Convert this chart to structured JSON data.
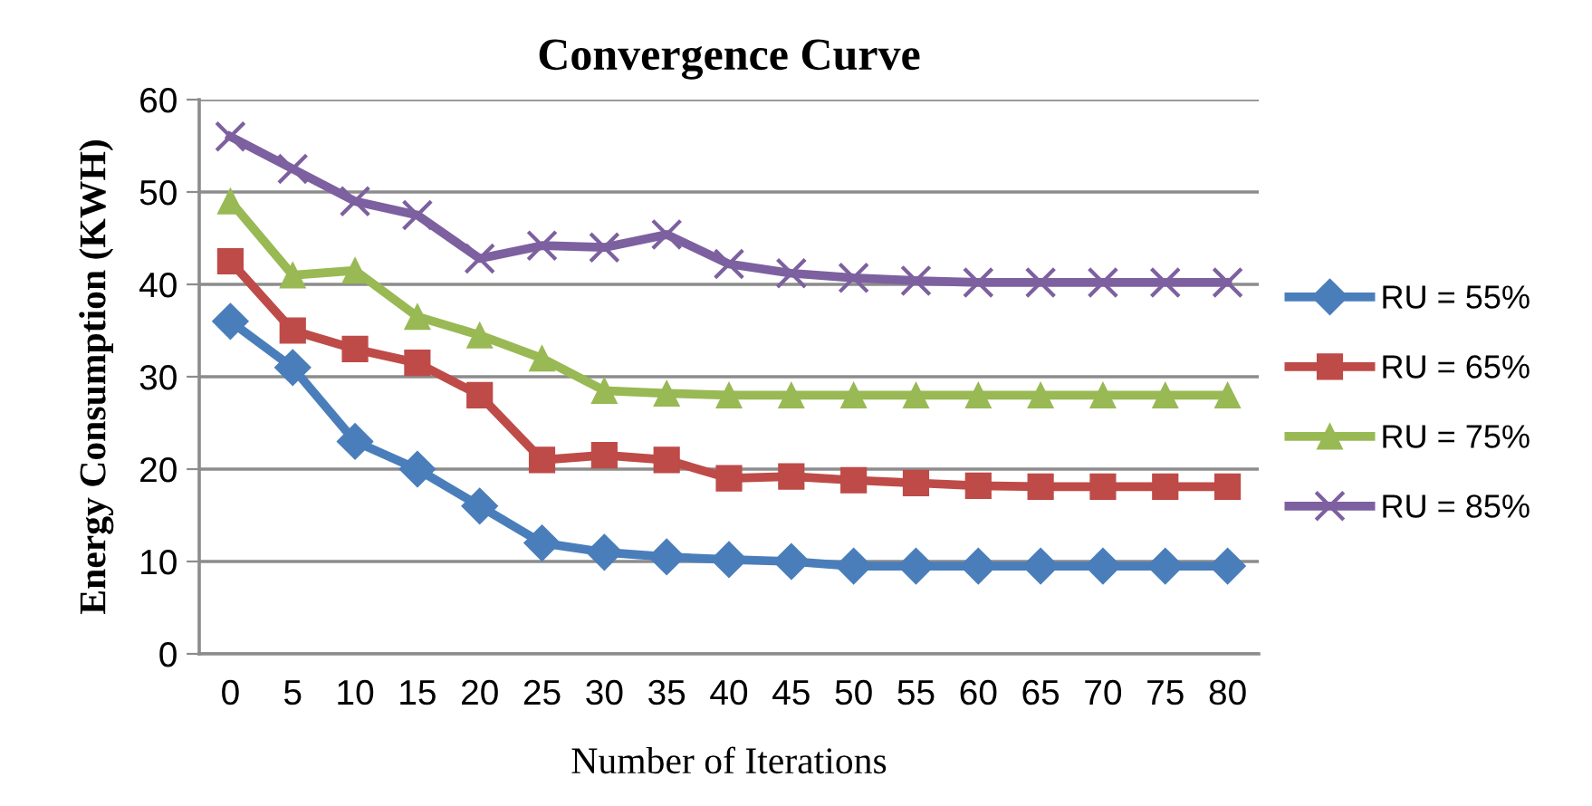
{
  "chart_data": {
    "type": "line",
    "title": "Convergence Curve",
    "xlabel": "Number of Iterations",
    "ylabel": "Energy Consumption (KWH)",
    "categories": [
      "0",
      "5",
      "10",
      "15",
      "20",
      "25",
      "30",
      "35",
      "40",
      "45",
      "50",
      "55",
      "60",
      "65",
      "70",
      "75",
      "80"
    ],
    "series": [
      {
        "name": "RU = 55%",
        "color": "#4a7ebb",
        "marker": "diamond",
        "values": [
          36,
          31,
          23,
          20,
          16,
          12,
          11,
          10.5,
          10.2,
          10,
          9.5,
          9.5,
          9.5,
          9.5,
          9.5,
          9.5,
          9.5
        ]
      },
      {
        "name": "RU = 65%",
        "color": "#be4b48",
        "marker": "square",
        "values": [
          42.5,
          35,
          33,
          31.5,
          28,
          21,
          21.5,
          21,
          19,
          19.2,
          18.8,
          18.5,
          18.2,
          18.1,
          18.1,
          18.1,
          18.1
        ]
      },
      {
        "name": "RU = 75%",
        "color": "#98b954",
        "marker": "triangle",
        "values": [
          49,
          41,
          41.5,
          36.5,
          34.5,
          32,
          28.5,
          28.2,
          28,
          28,
          28,
          28,
          28,
          28,
          28,
          28,
          28
        ]
      },
      {
        "name": "RU = 85%",
        "color": "#7d60a0",
        "marker": "cross",
        "values": [
          56,
          52.5,
          49,
          47.5,
          42.8,
          44.2,
          44,
          45.4,
          42.2,
          41.2,
          40.7,
          40.4,
          40.2,
          40.2,
          40.2,
          40.2,
          40.2
        ]
      }
    ],
    "ylim": [
      0,
      60
    ],
    "yticks": [
      0,
      10,
      20,
      30,
      40,
      50,
      60
    ],
    "grid": "y",
    "legend": "right"
  }
}
